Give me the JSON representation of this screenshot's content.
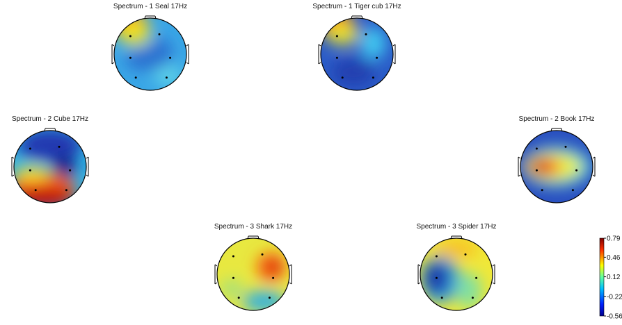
{
  "maps": [
    {
      "title": "Spectrum - 1   Seal   17Hz"
    },
    {
      "title": "Spectrum - 1   Tiger cub   17Hz"
    },
    {
      "title": "Spectrum - 2   Cube  17Hz"
    },
    {
      "title": "Spectrum - 2   Book   17Hz"
    },
    {
      "title": "Spectrum - 3  Shark 17Hz"
    },
    {
      "title": "Spectrum - 3  Spider 17Hz"
    }
  ],
  "colorbar": {
    "lim": [
      -0.56,
      0.79
    ],
    "ticks": [
      0.79,
      0.46,
      0.12,
      -0.22,
      -0.56
    ]
  }
}
